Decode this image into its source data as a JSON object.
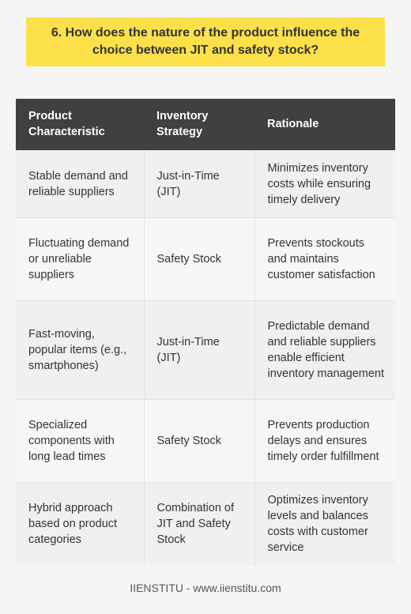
{
  "title": "6. How does the nature of the product influence the choice between JIT and safety stock?",
  "table": {
    "headers": [
      "Product Characteristic",
      "Inventory Strategy",
      "Rationale"
    ],
    "rows": [
      [
        "Stable demand and reliable suppliers",
        "Just-in-Time (JIT)",
        "Minimizes inventory costs while ensuring timely delivery"
      ],
      [
        "Fluctuating demand or unreliable suppliers",
        "Safety Stock",
        "Prevents stockouts and maintains customer satisfaction"
      ],
      [
        "Fast-moving, popular items (e.g., smartphones)",
        "Just-in-Time (JIT)",
        "Predictable demand and reliable suppliers enable efficient inventory management"
      ],
      [
        "Specialized components with long lead times",
        "Safety Stock",
        "Prevents production delays and ensures timely order fulfillment"
      ],
      [
        "Hybrid approach based on product categories",
        "Combination of JIT and Safety Stock",
        "Optimizes inventory levels and balances costs with customer service"
      ]
    ]
  },
  "footer": "IIENSTITU - www.iienstitu.com",
  "colors": {
    "title_background": "#fde14a",
    "header_background": "#404040",
    "page_background": "#f5f5f5"
  }
}
